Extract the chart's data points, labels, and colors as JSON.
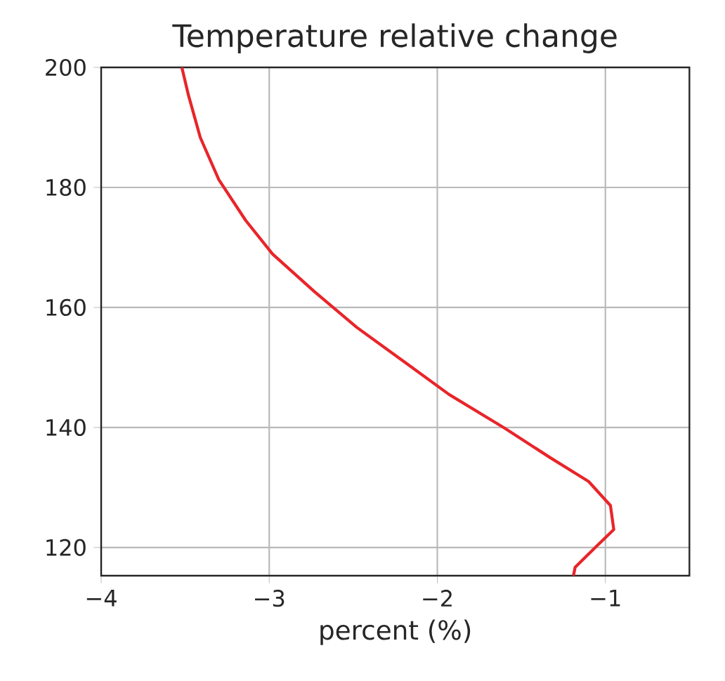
{
  "chart_data": {
    "type": "line",
    "title": "Temperature relative change",
    "xlabel": "percent (%)",
    "x": [
      -3.52,
      -3.48,
      -3.41,
      -3.3,
      -3.14,
      -2.98,
      -2.73,
      -2.48,
      -2.18,
      -1.93,
      -1.6,
      -1.33,
      -1.1,
      -0.97,
      -0.95,
      -1.06,
      -1.18,
      -1.19
    ],
    "values": [
      200,
      195.3,
      188.3,
      181.3,
      174.5,
      168.9,
      162.6,
      156.7,
      150.6,
      145.5,
      139.9,
      135.0,
      131.0,
      127.0,
      123.0,
      120.0,
      116.7,
      115.3
    ],
    "color": "#e8252a",
    "xlim": [
      -4,
      -0.5
    ],
    "ylim": [
      115.3,
      200
    ],
    "xticks": [
      {
        "value": -4,
        "label": "−4"
      },
      {
        "value": -3,
        "label": "−3"
      },
      {
        "value": -2,
        "label": "−2"
      },
      {
        "value": -1,
        "label": "−1"
      }
    ],
    "yticks": [
      120,
      140,
      160,
      180,
      200
    ],
    "grid": true
  }
}
